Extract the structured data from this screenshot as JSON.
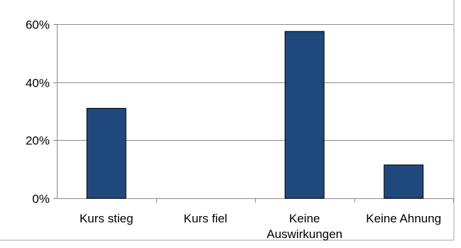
{
  "chart_data": {
    "type": "bar",
    "categories": [
      "Kurs stieg",
      "Kurs fiel",
      "Keine\nAuswirkungen",
      "Keine Ahnung"
    ],
    "values": [
      31,
      0,
      57.5,
      11.5
    ],
    "unit": "%",
    "ylim": [
      0,
      60
    ],
    "yticks": [
      0,
      20,
      40,
      60
    ],
    "ytick_labels": [
      "0%",
      "20%",
      "40%",
      "60%"
    ],
    "grid": true,
    "legend": "none",
    "colors": {
      "bar": "#1f497d",
      "bar_stroke": "#000000",
      "grid": "#8c8c8c",
      "axis": "#8c8c8c",
      "frame": "#a6a6a6"
    }
  }
}
